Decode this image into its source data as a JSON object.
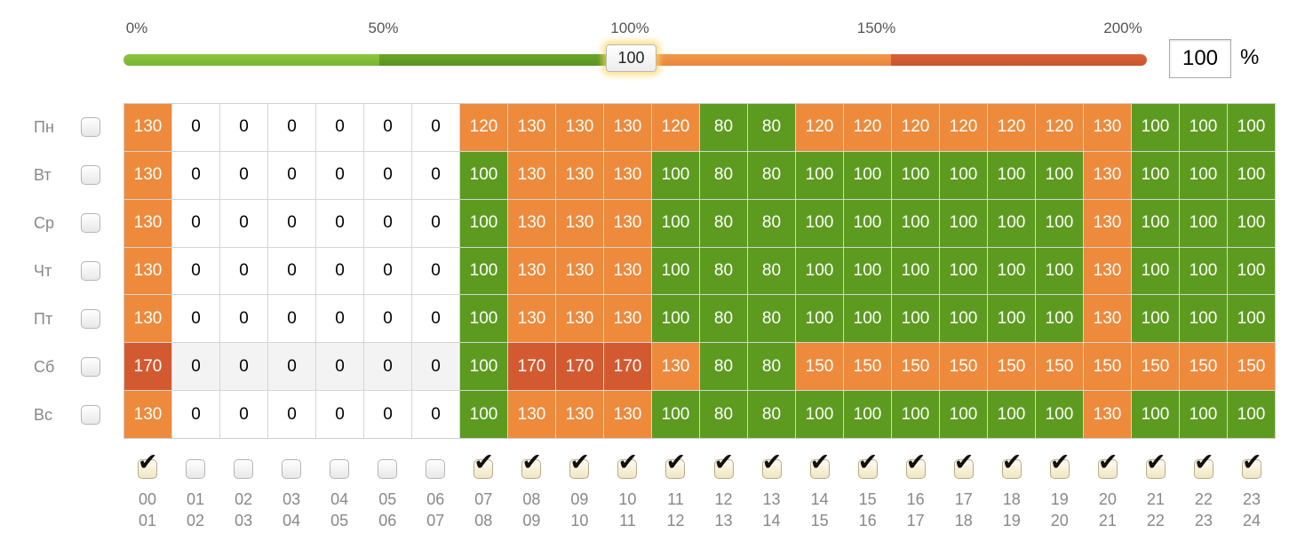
{
  "colors": {
    "green": "#5c9b1f",
    "orange": "#ee8a3c",
    "red": "#d35a30",
    "white": "#ffffff",
    "light": "#f3f3f3"
  },
  "slider": {
    "labels": [
      {
        "text": "0%",
        "pos": 0
      },
      {
        "text": "50%",
        "pos": 0.25
      },
      {
        "text": "100%",
        "pos": 0.5
      },
      {
        "text": "150%",
        "pos": 0.75
      },
      {
        "text": "200%",
        "pos": 1
      }
    ],
    "value": 100,
    "thumb_label": "100",
    "input_value": "100",
    "unit": "%"
  },
  "days": [
    {
      "label": "Пн",
      "checked": false
    },
    {
      "label": "Вт",
      "checked": false
    },
    {
      "label": "Ср",
      "checked": false
    },
    {
      "label": "Чт",
      "checked": false
    },
    {
      "label": "Пт",
      "checked": false
    },
    {
      "label": "Сб",
      "checked": false
    },
    {
      "label": "Вс",
      "checked": false
    }
  ],
  "hours": [
    {
      "from": "00",
      "to": "01",
      "checked": true
    },
    {
      "from": "01",
      "to": "02",
      "checked": false
    },
    {
      "from": "02",
      "to": "03",
      "checked": false
    },
    {
      "from": "03",
      "to": "04",
      "checked": false
    },
    {
      "from": "04",
      "to": "05",
      "checked": false
    },
    {
      "from": "05",
      "to": "06",
      "checked": false
    },
    {
      "from": "06",
      "to": "07",
      "checked": false
    },
    {
      "from": "07",
      "to": "08",
      "checked": true
    },
    {
      "from": "08",
      "to": "09",
      "checked": true
    },
    {
      "from": "09",
      "to": "10",
      "checked": true
    },
    {
      "from": "10",
      "to": "11",
      "checked": true
    },
    {
      "from": "11",
      "to": "12",
      "checked": true
    },
    {
      "from": "12",
      "to": "13",
      "checked": true
    },
    {
      "from": "13",
      "to": "14",
      "checked": true
    },
    {
      "from": "14",
      "to": "15",
      "checked": true
    },
    {
      "from": "15",
      "to": "16",
      "checked": true
    },
    {
      "from": "16",
      "to": "17",
      "checked": true
    },
    {
      "from": "17",
      "to": "18",
      "checked": true
    },
    {
      "from": "18",
      "to": "19",
      "checked": true
    },
    {
      "from": "19",
      "to": "20",
      "checked": true
    },
    {
      "from": "20",
      "to": "21",
      "checked": true
    },
    {
      "from": "21",
      "to": "22",
      "checked": true
    },
    {
      "from": "22",
      "to": "23",
      "checked": true
    },
    {
      "from": "23",
      "to": "24",
      "checked": true
    }
  ],
  "grid": [
    [
      130,
      0,
      0,
      0,
      0,
      0,
      0,
      120,
      130,
      130,
      130,
      120,
      80,
      80,
      120,
      120,
      120,
      120,
      120,
      120,
      130,
      100,
      100,
      100
    ],
    [
      130,
      0,
      0,
      0,
      0,
      0,
      0,
      100,
      130,
      130,
      130,
      100,
      80,
      80,
      100,
      100,
      100,
      100,
      100,
      100,
      130,
      100,
      100,
      100
    ],
    [
      130,
      0,
      0,
      0,
      0,
      0,
      0,
      100,
      130,
      130,
      130,
      100,
      80,
      80,
      100,
      100,
      100,
      100,
      100,
      100,
      130,
      100,
      100,
      100
    ],
    [
      130,
      0,
      0,
      0,
      0,
      0,
      0,
      100,
      130,
      130,
      130,
      100,
      80,
      80,
      100,
      100,
      100,
      100,
      100,
      100,
      130,
      100,
      100,
      100
    ],
    [
      130,
      0,
      0,
      0,
      0,
      0,
      0,
      100,
      130,
      130,
      130,
      100,
      80,
      80,
      100,
      100,
      100,
      100,
      100,
      100,
      130,
      100,
      100,
      100
    ],
    [
      170,
      0,
      0,
      0,
      0,
      0,
      0,
      100,
      170,
      170,
      170,
      130,
      80,
      80,
      150,
      150,
      150,
      150,
      150,
      150,
      150,
      150,
      150,
      150
    ],
    [
      130,
      0,
      0,
      0,
      0,
      0,
      0,
      100,
      130,
      130,
      130,
      100,
      80,
      80,
      100,
      100,
      100,
      100,
      100,
      100,
      130,
      100,
      100,
      100
    ]
  ]
}
